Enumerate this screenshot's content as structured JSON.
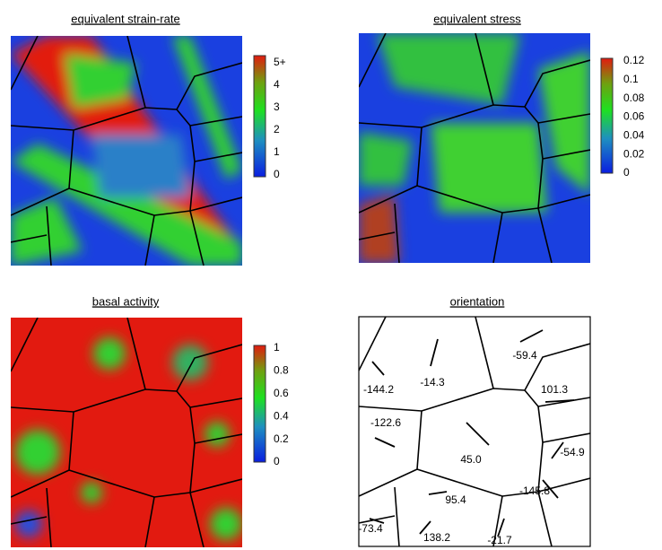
{
  "panels": [
    {
      "title": "equivalent strain-rate",
      "colorbar": [
        "5+",
        "4",
        "3",
        "2",
        "1",
        "0"
      ]
    },
    {
      "title": "equivalent stress",
      "colorbar": [
        "0.12",
        "0.1",
        "0.08",
        "0.06",
        "0.04",
        "0.02",
        "0"
      ]
    },
    {
      "title": "basal activity",
      "colorbar": [
        "1",
        "0.8",
        "0.6",
        "0.4",
        "0.2",
        "0"
      ]
    },
    {
      "title": "orientation",
      "labels": [
        "-59.4",
        "-14.3",
        "-144.2",
        "101.3",
        "-122.6",
        "45.0",
        "-54.9",
        "-145.8",
        "95.4",
        "-73.4",
        "138.2",
        "-21.7"
      ]
    }
  ]
}
